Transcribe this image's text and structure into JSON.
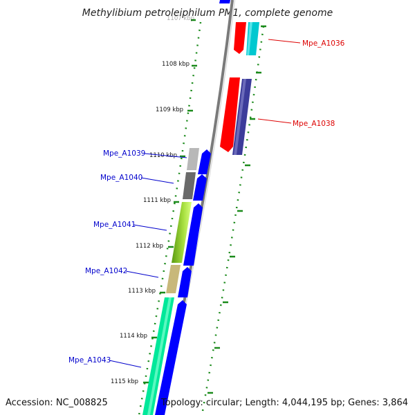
{
  "title": "Methylibium petroleiphilum PM1, complete genome",
  "footer": {
    "accession": "Accession: NC_008825",
    "topology": "Topology: circular; Length: 4,044,195 bp; Genes: 3,864"
  },
  "colors": {
    "backbone": "#7a7a7a",
    "tick_major": "#1a8a1a",
    "tick_minor": "#2e9e2e",
    "label_forward": "#0000cc",
    "label_reverse": "#dd0000"
  },
  "kbp_ticks": [
    {
      "label": "1107 kbp"
    },
    {
      "label": "1108 kbp"
    },
    {
      "label": "1109 kbp"
    },
    {
      "label": "1110 kbp"
    },
    {
      "label": "1111 kbp"
    },
    {
      "label": "1112 kbp"
    },
    {
      "label": "1113 kbp"
    },
    {
      "label": "1114 kbp"
    },
    {
      "label": "1115 kbp"
    }
  ],
  "genes": [
    {
      "name": "Mpe_A1036",
      "strand": "reverse",
      "colors": [
        "#ff0000",
        "#00c8d0"
      ]
    },
    {
      "name": "Mpe_A1038",
      "strand": "reverse",
      "colors": [
        "#ff0000",
        "#3c3c9a"
      ]
    },
    {
      "name": "Mpe_A1039",
      "strand": "forward",
      "colors": [
        "#b8b8b8",
        "#0000ff"
      ]
    },
    {
      "name": "Mpe_A1040",
      "strand": "forward",
      "colors": [
        "#6a6a6a",
        "#0000ff"
      ]
    },
    {
      "name": "Mpe_A1041",
      "strand": "forward",
      "colors": [
        "#8ad02a",
        "#0000ff"
      ]
    },
    {
      "name": "Mpe_A1042",
      "strand": "forward",
      "colors": [
        "#c8b87a",
        "#0000ff"
      ]
    },
    {
      "name": "Mpe_A1043",
      "strand": "forward",
      "colors": [
        "#00e89a",
        "#0000ff"
      ]
    }
  ]
}
